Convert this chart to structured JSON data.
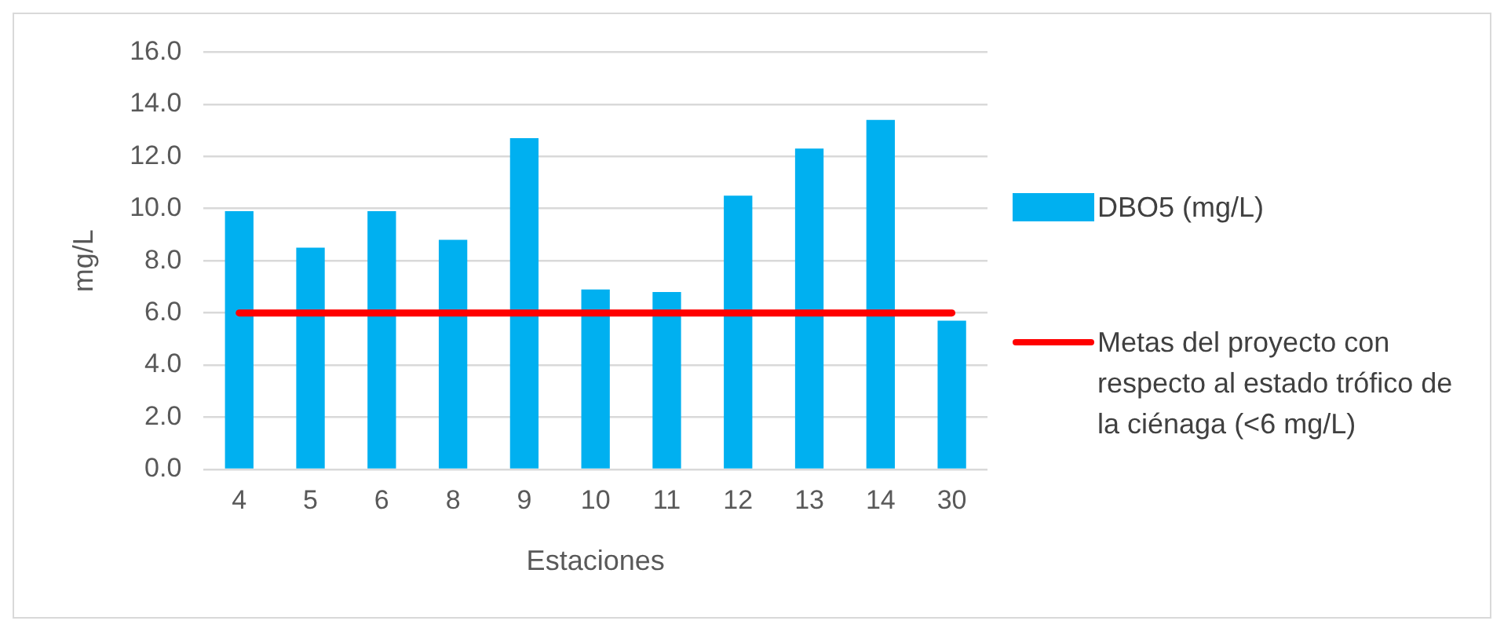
{
  "chart_data": {
    "type": "bar",
    "xlabel": "Estaciones",
    "ylabel": "mg/L",
    "categories": [
      "4",
      "5",
      "6",
      "8",
      "9",
      "10",
      "11",
      "12",
      "13",
      "14",
      "30"
    ],
    "series": [
      {
        "name": "DBO5 (mg/L)",
        "color": "#00b0f0",
        "values": [
          9.9,
          8.5,
          9.9,
          8.8,
          12.7,
          6.9,
          6.8,
          10.5,
          12.3,
          13.4,
          5.7
        ]
      },
      {
        "name": "Metas del proyecto con respecto al estado trófico de la ciénaga (<6 mg/L)",
        "type": "line",
        "color": "#ff0000",
        "values": [
          6,
          6,
          6,
          6,
          6,
          6,
          6,
          6,
          6,
          6,
          6
        ]
      }
    ],
    "ylim": [
      0,
      16
    ],
    "yticks": [
      {
        "value": 0,
        "label": "0.0"
      },
      {
        "value": 2,
        "label": "2.0"
      },
      {
        "value": 4,
        "label": "4.0"
      },
      {
        "value": 6,
        "label": "6.0"
      },
      {
        "value": 8,
        "label": "8.0"
      },
      {
        "value": 10,
        "label": "10.0"
      },
      {
        "value": 12,
        "label": "12.0"
      },
      {
        "value": 14,
        "label": "14.0"
      },
      {
        "value": 16,
        "label": "16.0"
      }
    ],
    "grid": "y",
    "legend": "right",
    "marker": "none"
  }
}
